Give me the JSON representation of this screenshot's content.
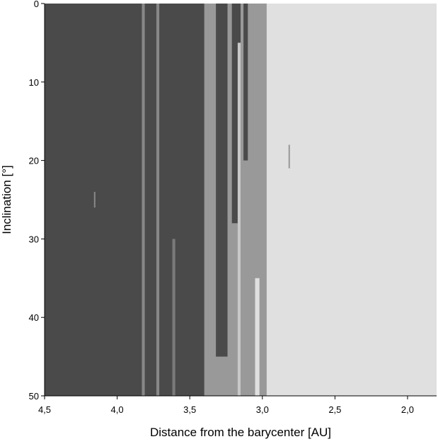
{
  "chart_data": {
    "type": "heatmap",
    "xlabel": "Distance from the barycenter [AU]",
    "ylabel": "Inclination [°]",
    "xlim": [
      4.5,
      1.8
    ],
    "ylim": [
      0,
      50
    ],
    "y_inverted": true,
    "xticks": [
      {
        "value": 4.5,
        "label": "4,5"
      },
      {
        "value": 4.0,
        "label": "4,0"
      },
      {
        "value": 3.5,
        "label": "3,5"
      },
      {
        "value": 3.0,
        "label": "3,0"
      },
      {
        "value": 2.5,
        "label": "2,5"
      },
      {
        "value": 2.0,
        "label": "2,0"
      }
    ],
    "yticks": [
      0,
      10,
      20,
      30,
      40,
      50
    ],
    "regions": [
      {
        "x0": 4.5,
        "x1": 3.4,
        "y0": 0,
        "y1": 50,
        "color": "#4a4a4a"
      },
      {
        "x0": 3.4,
        "x1": 2.97,
        "y0": 0,
        "y1": 50,
        "color": "#999999"
      },
      {
        "x0": 2.97,
        "x1": 1.8,
        "y0": 0,
        "y1": 50,
        "color": "#e0e0e0"
      },
      {
        "x0": 3.45,
        "x1": 3.4,
        "y0": 0,
        "y1": 50,
        "color": "#4a4a4a"
      },
      {
        "x0": 3.32,
        "x1": 3.24,
        "y0": 0,
        "y1": 45,
        "color": "#4a4a4a"
      },
      {
        "x0": 3.21,
        "x1": 3.15,
        "y0": 0,
        "y1": 28,
        "color": "#4a4a4a"
      },
      {
        "x0": 3.13,
        "x1": 3.1,
        "y0": 0,
        "y1": 20,
        "color": "#4a4a4a"
      },
      {
        "x0": 3.17,
        "x1": 3.15,
        "y0": 5,
        "y1": 50,
        "color": "#c8c8c8"
      },
      {
        "x0": 3.05,
        "x1": 3.02,
        "y0": 35,
        "y1": 50,
        "color": "#e0e0e0"
      },
      {
        "x0": 3.83,
        "x1": 3.81,
        "y0": 0,
        "y1": 50,
        "color": "#888888"
      },
      {
        "x0": 3.73,
        "x1": 3.71,
        "y0": 0,
        "y1": 50,
        "color": "#888888"
      },
      {
        "x0": 3.62,
        "x1": 3.6,
        "y0": 30,
        "y1": 50,
        "color": "#7a7a7a"
      },
      {
        "x0": 4.16,
        "x1": 4.15,
        "y0": 24,
        "y1": 26,
        "color": "#888888"
      },
      {
        "x0": 2.82,
        "x1": 2.81,
        "y0": 18,
        "y1": 21,
        "color": "#999999"
      }
    ]
  }
}
